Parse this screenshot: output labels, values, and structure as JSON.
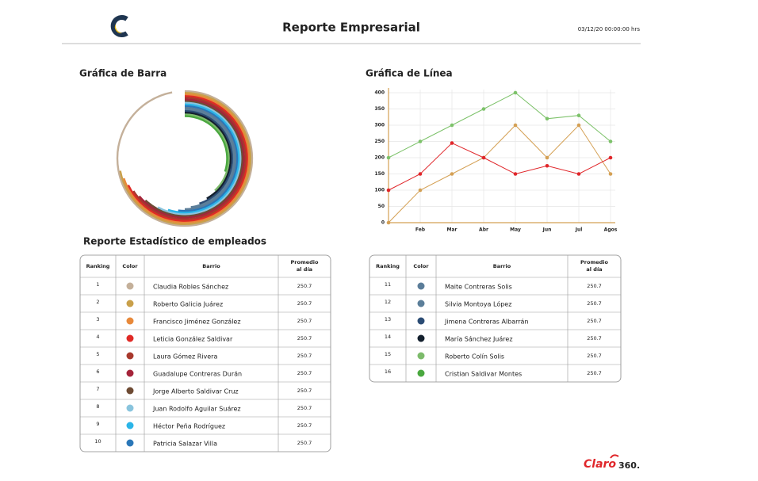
{
  "header": {
    "title": "Reporte Empresarial",
    "datetime": "03/12/20  00:00:00 hrs"
  },
  "section_titles": [
    "Gráfica de Barra",
    "Gráfica de Línea",
    "Reporte Estadístico de empleados"
  ],
  "chart_data": [
    {
      "type": "radial_bar",
      "xlim": [
        0,
        100
      ],
      "colors": [
        "#c4b09a",
        "#c9a04a",
        "#e8893a",
        "#e02a26",
        "#a8392d",
        "#a5243a",
        "#6e4b34",
        "#89c4dd",
        "#2bb5e8",
        "#2a77b8",
        "#5b7d99",
        "#5c7f9a",
        "#2b4c74",
        "#14202e",
        "#7dbb6b",
        "#4aa83f"
      ],
      "values": [
        97,
        72,
        70,
        68,
        66,
        64,
        62,
        58,
        55,
        52,
        50,
        48,
        45,
        42,
        38,
        30
      ]
    },
    {
      "type": "line",
      "categories": [
        null,
        "Feb",
        "Mar",
        "Abr",
        "May",
        "Jun",
        "Jul",
        "Agos"
      ],
      "series": [
        {
          "color": "#7dc26a",
          "values": [
            200,
            250,
            300,
            350,
            400,
            320,
            330,
            250
          ]
        },
        {
          "color": "#d4a054",
          "values": [
            0,
            100,
            150,
            200,
            300,
            200,
            300,
            150
          ]
        },
        {
          "color": "#e0262a",
          "values": [
            100,
            150,
            245,
            200,
            150,
            175,
            150,
            200
          ]
        }
      ],
      "ylim": [
        0,
        400
      ],
      "yticks": [
        0,
        50,
        100,
        150,
        200,
        250,
        300,
        350,
        400
      ],
      "grid": true
    }
  ],
  "tables": [
    {
      "headers": [
        "Ranking",
        "Color",
        "Barrio",
        [
          "Promedio",
          "al día"
        ]
      ],
      "rows": [
        [
          "1",
          "#c4b09a",
          "Claudia Robles Sánchez",
          "250.7"
        ],
        [
          "2",
          "#c9a04a",
          "Roberto Galicia Juárez",
          "250.7"
        ],
        [
          "3",
          "#e8893a",
          "Francisco Jiménez González",
          "250.7"
        ],
        [
          "4",
          "#e02a26",
          "Leticia González Saldivar",
          "250.7"
        ],
        [
          "5",
          "#a8392d",
          "Laura Gómez Rivera",
          "250.7"
        ],
        [
          "6",
          "#a5243a",
          "Guadalupe Contreras Durán",
          "250.7"
        ],
        [
          "7",
          "#6e4b34",
          "Jorge Alberto Saldivar Cruz",
          "250.7"
        ],
        [
          "8",
          "#89c4dd",
          "Juan Rodolfo Aguilar Suárez",
          "250.7"
        ],
        [
          "9",
          "#2bb5e8",
          "Héctor Peña Rodríguez",
          "250.7"
        ],
        [
          "10",
          "#2a77b8",
          "Patricia Salazar Villa",
          "250.7"
        ]
      ]
    },
    {
      "headers": [
        "Ranking",
        "Color",
        "Barrio",
        [
          "Promedio",
          "al día"
        ]
      ],
      "rows": [
        [
          "11",
          "#5b7d99",
          "Maite Contreras Solis",
          "250.7"
        ],
        [
          "12",
          "#5c7f9a",
          "Silvia Montoya López",
          "250.7"
        ],
        [
          "13",
          "#2b4c74",
          "Jimena Contreras Albarrán",
          "250.7"
        ],
        [
          "14",
          "#14202e",
          "María Sánchez Juárez",
          "250.7"
        ],
        [
          "15",
          "#7dbb6b",
          "Roberto Colín Solis",
          "250.7"
        ],
        [
          "16",
          "#4aa83f",
          "Cristian Saldivar Montes",
          "250.7"
        ]
      ]
    }
  ],
  "footer": {
    "brand": "Claro",
    "suffix": "360."
  }
}
